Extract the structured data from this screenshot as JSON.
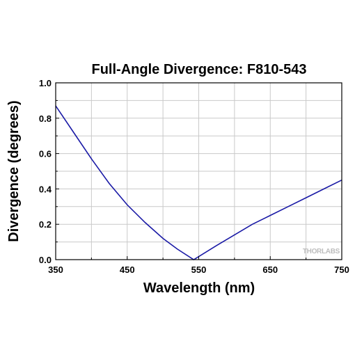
{
  "chart_data": {
    "type": "line",
    "title": "Full-Angle Divergence: F810-543",
    "xlabel": "Wavelength (nm)",
    "ylabel": "Divergence (degrees)",
    "xlim": [
      350,
      750
    ],
    "ylim": [
      0.0,
      1.0
    ],
    "xticks": [
      350,
      450,
      550,
      650,
      750
    ],
    "xtick_labels": [
      "350",
      "450",
      "550",
      "650",
      "750"
    ],
    "yticks": [
      0.0,
      0.2,
      0.4,
      0.6,
      0.8,
      1.0
    ],
    "ytick_labels": [
      "0.0",
      "0.2",
      "0.4",
      "0.6",
      "0.8",
      "1.0"
    ],
    "grid": true,
    "series": [
      {
        "color": "#1a1aa6",
        "x": [
          350,
          375,
          400,
          425,
          450,
          475,
          500,
          520,
          543,
          575,
          600,
          625,
          650,
          675,
          700,
          725,
          750
        ],
        "y": [
          0.87,
          0.72,
          0.57,
          0.43,
          0.31,
          0.21,
          0.12,
          0.06,
          0.0,
          0.08,
          0.14,
          0.2,
          0.25,
          0.3,
          0.35,
          0.4,
          0.45
        ]
      }
    ]
  },
  "watermark": {
    "text": "THORLABS"
  }
}
